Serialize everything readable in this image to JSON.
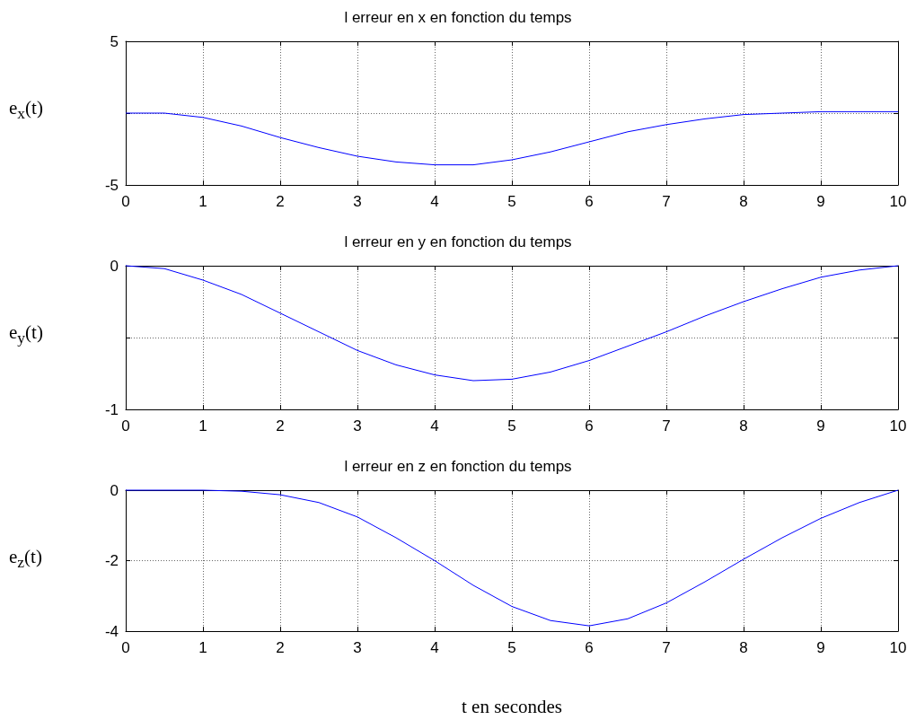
{
  "chart_data": [
    {
      "type": "line",
      "title": "l erreur en x en fonction du temps",
      "ylabel": "e$_{x}$(t)",
      "x": [
        0,
        0.5,
        1,
        1.5,
        2,
        2.5,
        3,
        3.5,
        4,
        4.5,
        5,
        5.5,
        6,
        6.5,
        7,
        7.5,
        8,
        8.5,
        9,
        9.5,
        10
      ],
      "series": [
        {
          "color": "#0000ff",
          "values": [
            0,
            0,
            -0.3,
            -0.9,
            -1.7,
            -2.4,
            -3.0,
            -3.4,
            -3.6,
            -3.6,
            -3.25,
            -2.7,
            -2.0,
            -1.3,
            -0.8,
            -0.4,
            -0.1,
            0,
            0.1,
            0.1,
            0.1
          ]
        }
      ],
      "xlim": [
        0,
        10
      ],
      "xticks": [
        0,
        1,
        2,
        3,
        4,
        5,
        6,
        7,
        8,
        9,
        10
      ],
      "ylim": [
        -5,
        5
      ],
      "yticks": [
        -5,
        {
          "value": 0,
          "label": null
        },
        5
      ],
      "grid": true
    },
    {
      "type": "line",
      "title": "l erreur en y en fonction du temps",
      "ylabel": "e$_{y}$(t)",
      "x": [
        0,
        0.5,
        1,
        1.5,
        2,
        2.5,
        3,
        3.5,
        4,
        4.5,
        5,
        5.5,
        6,
        6.5,
        7,
        7.5,
        8,
        8.5,
        9,
        9.5,
        10
      ],
      "series": [
        {
          "color": "#0000ff",
          "values": [
            0,
            -0.02,
            -0.1,
            -0.2,
            -0.33,
            -0.46,
            -0.59,
            -0.69,
            -0.76,
            -0.8,
            -0.79,
            -0.74,
            -0.66,
            -0.56,
            -0.46,
            -0.35,
            -0.25,
            -0.16,
            -0.08,
            -0.03,
            0
          ]
        }
      ],
      "xlim": [
        0,
        10
      ],
      "xticks": [
        0,
        1,
        2,
        3,
        4,
        5,
        6,
        7,
        8,
        9,
        10
      ],
      "ylim": [
        -1,
        0
      ],
      "yticks": [
        -1,
        {
          "value": -0.5,
          "label": null
        },
        0
      ],
      "grid": true
    },
    {
      "type": "line",
      "title": "l erreur en z en fonction du temps",
      "xlabel": "t en secondes",
      "ylabel": "e$_{z}$(t)",
      "x": [
        0,
        0.5,
        1,
        1.5,
        2,
        2.5,
        3,
        3.5,
        4,
        4.5,
        5,
        5.5,
        6,
        6.5,
        7,
        7.5,
        8,
        8.5,
        9,
        9.5,
        10
      ],
      "series": [
        {
          "color": "#0000ff",
          "values": [
            0,
            0,
            0,
            -0.03,
            -0.13,
            -0.35,
            -0.76,
            -1.35,
            -2.0,
            -2.7,
            -3.3,
            -3.7,
            -3.85,
            -3.65,
            -3.2,
            -2.6,
            -1.96,
            -1.35,
            -0.8,
            -0.35,
            0
          ]
        }
      ],
      "xlim": [
        0,
        10
      ],
      "xticks": [
        0,
        1,
        2,
        3,
        4,
        5,
        6,
        7,
        8,
        9,
        10
      ],
      "ylim": [
        -4,
        0
      ],
      "yticks": [
        -4,
        -2,
        0
      ],
      "grid": true
    }
  ]
}
